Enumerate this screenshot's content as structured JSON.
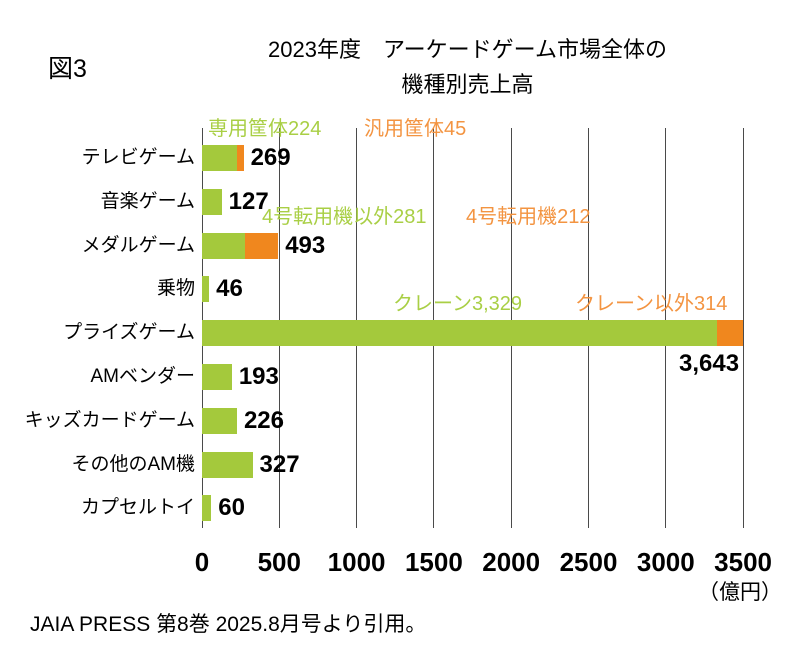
{
  "figure_label": "図3",
  "title": {
    "line1": "2023年度　アーケードゲーム市場全体の",
    "line2": "機種別売上高"
  },
  "source": "JAIA PRESS 第8巻 2025.8月号より引用。",
  "chart_data": {
    "type": "bar",
    "orientation": "horizontal",
    "title": "2023年度 アーケードゲーム市場全体の機種別売上高",
    "unit_label": "（億円）",
    "xlim": [
      0,
      3500
    ],
    "x_ticks": [
      0,
      500,
      1000,
      1500,
      2000,
      2500,
      3000,
      3500
    ],
    "x_tick_labels": [
      "0",
      "500",
      "1000",
      "1500",
      "2000",
      "2500",
      "3000",
      "3500"
    ],
    "grid": true,
    "legend": "none",
    "colors": {
      "bar_green": "#A4C93C",
      "bar_orange": "#F0871E",
      "text_green": "#A9CF45",
      "text_orange": "#F39441",
      "grid": "#4a4a4a",
      "value_text": "#000000",
      "background": "#ffffff"
    },
    "categories": [
      "テレビゲーム",
      "音楽ゲーム",
      "メダルゲーム",
      "乗物",
      "プライズゲーム",
      "AMベンダー",
      "キッズカードゲーム",
      "その他のAM機",
      "カプセルトイ"
    ],
    "rows": [
      {
        "category": "テレビゲーム",
        "total": 269,
        "total_label": "269",
        "label_position": "right",
        "segments": [
          {
            "name": "専用筐体",
            "value": 224,
            "annotation": "専用筐体224",
            "color": "green"
          },
          {
            "name": "汎用筐体",
            "value": 45,
            "annotation": "汎用筐体45",
            "color": "orange"
          }
        ]
      },
      {
        "category": "音楽ゲーム",
        "total": 127,
        "total_label": "127",
        "label_position": "right",
        "segments": [
          {
            "name": "音楽ゲーム",
            "value": 127,
            "color": "green"
          }
        ]
      },
      {
        "category": "メダルゲーム",
        "total": 493,
        "total_label": "493",
        "label_position": "right",
        "segments": [
          {
            "name": "4号転用機以外",
            "value": 281,
            "annotation": "4号転用機以外281",
            "color": "green"
          },
          {
            "name": "4号転用機",
            "value": 212,
            "annotation": "4号転用機212",
            "color": "orange"
          }
        ]
      },
      {
        "category": "乗物",
        "total": 46,
        "total_label": "46",
        "label_position": "right",
        "segments": [
          {
            "name": "乗物",
            "value": 46,
            "color": "green"
          }
        ]
      },
      {
        "category": "プライズゲーム",
        "total": 3643,
        "total_label": "3,643",
        "label_position": "below",
        "segments": [
          {
            "name": "クレーン",
            "value": 3329,
            "annotation": "クレーン3,329",
            "color": "green"
          },
          {
            "name": "クレーン以外",
            "value": 314,
            "annotation": "クレーン以外314",
            "color": "orange"
          }
        ]
      },
      {
        "category": "AMベンダー",
        "total": 193,
        "total_label": "193",
        "label_position": "right",
        "segments": [
          {
            "name": "AMベンダー",
            "value": 193,
            "color": "green"
          }
        ]
      },
      {
        "category": "キッズカードゲーム",
        "total": 226,
        "total_label": "226",
        "label_position": "right",
        "segments": [
          {
            "name": "キッズカードゲーム",
            "value": 226,
            "color": "green"
          }
        ]
      },
      {
        "category": "その他のAM機",
        "total": 327,
        "total_label": "327",
        "label_position": "right",
        "segments": [
          {
            "name": "その他のAM機",
            "value": 327,
            "color": "green"
          }
        ]
      },
      {
        "category": "カプセルトイ",
        "total": 60,
        "total_label": "60",
        "label_position": "right",
        "segments": [
          {
            "name": "カプセルトイ",
            "value": 60,
            "color": "green"
          }
        ]
      }
    ]
  }
}
